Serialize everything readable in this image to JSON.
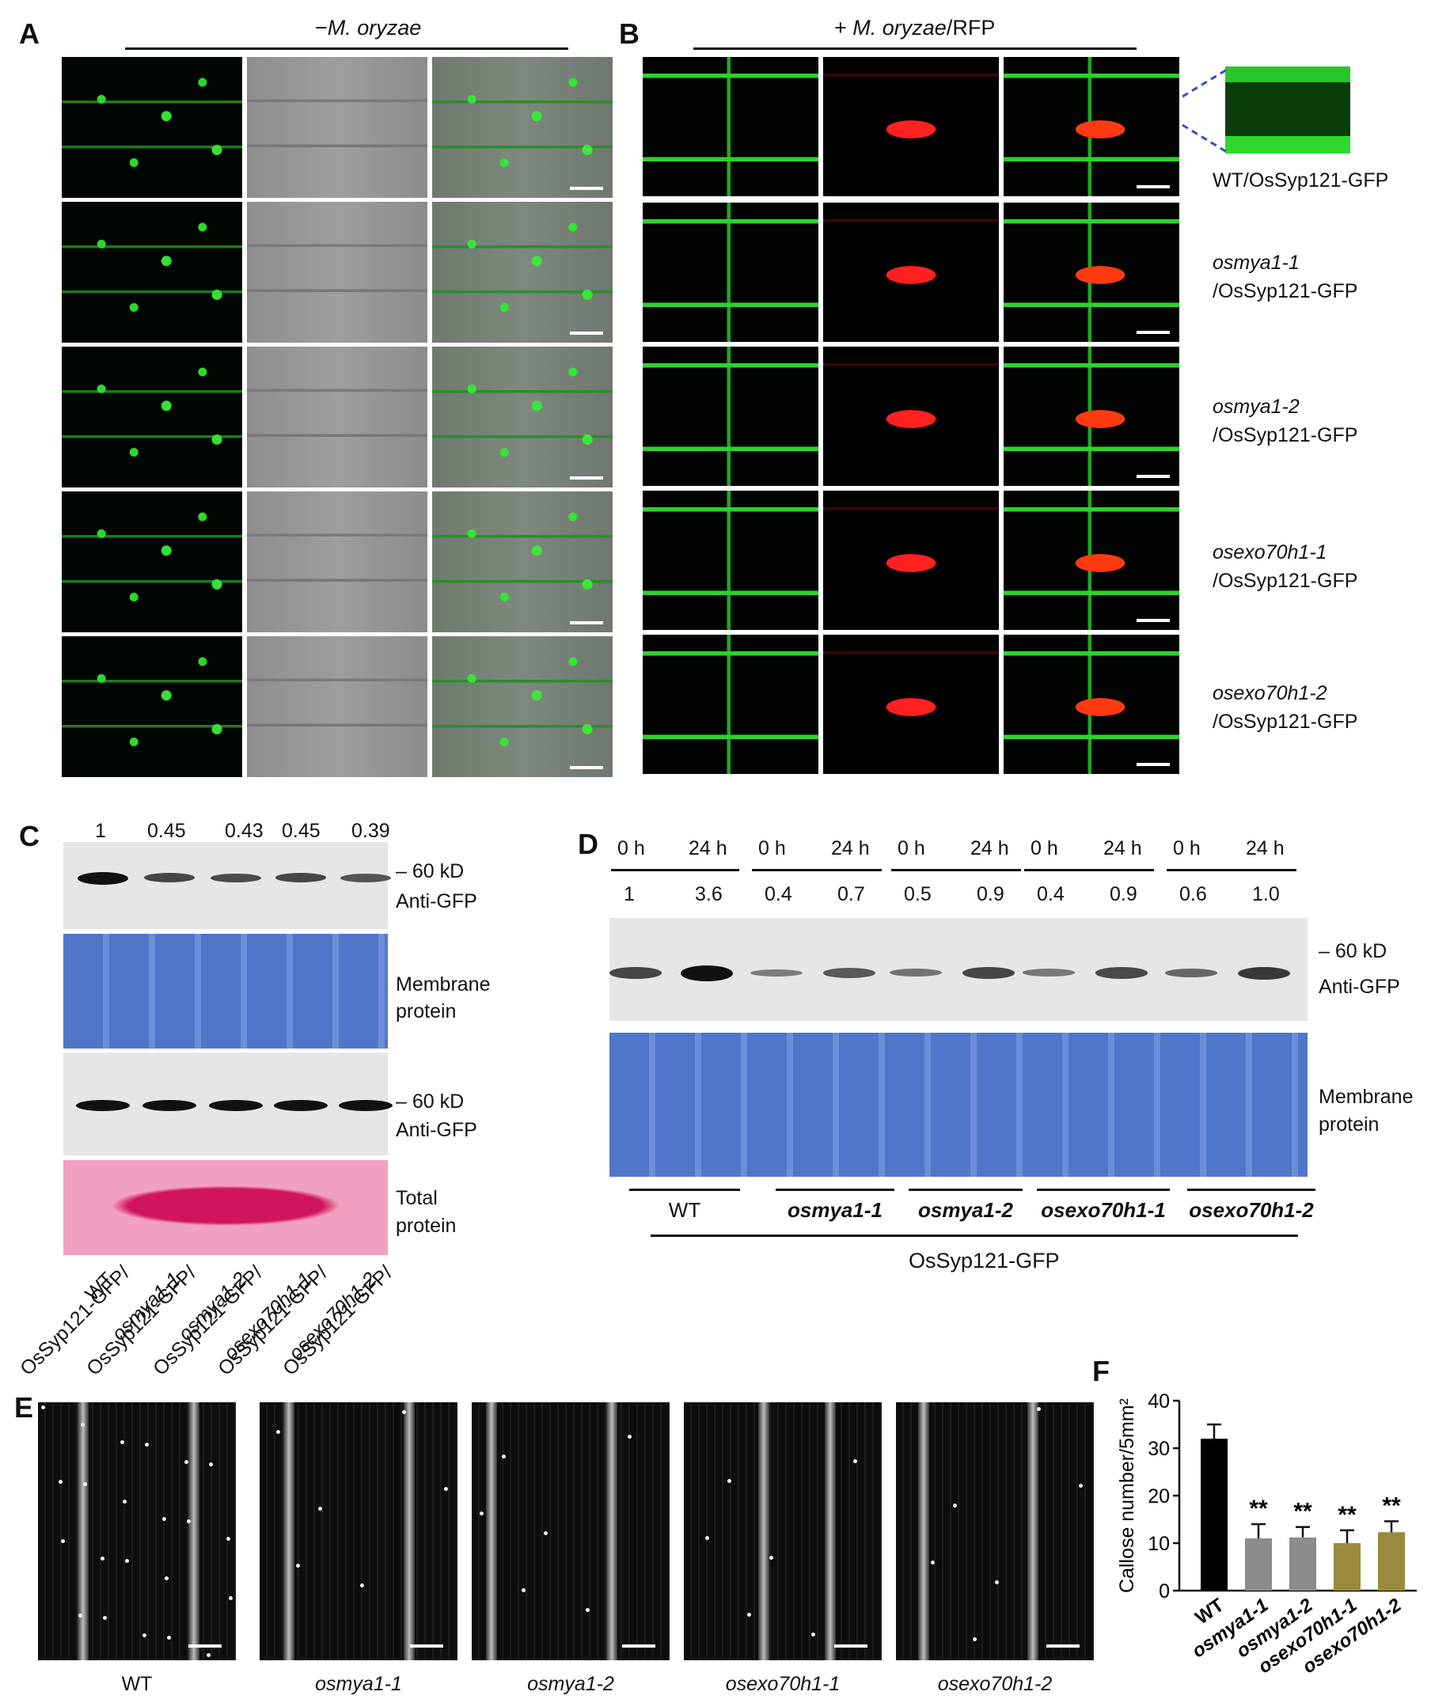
{
  "panels": {
    "A": {
      "label": "A",
      "header_sign": "−",
      "header_ital": "M. oryzae"
    },
    "B": {
      "label": "B",
      "header_pre": "+ ",
      "header_ital": "M. oryzae",
      "header_post": "/RFP",
      "asterisk": "*",
      "rows": [
        {
          "ital": "",
          "plain": "WT/OsSyp121-GFP",
          "line2": ""
        },
        {
          "ital": "osmya1-1",
          "plain": "",
          "line2": "/OsSyp121-GFP"
        },
        {
          "ital": "osmya1-2",
          "plain": "",
          "line2": "/OsSyp121-GFP"
        },
        {
          "ital": "osexo70h1-1",
          "plain": "",
          "line2": "/OsSyp121-GFP"
        },
        {
          "ital": "osexo70h1-2",
          "plain": "",
          "line2": "/OsSyp121-GFP"
        }
      ]
    },
    "C": {
      "label": "C",
      "ratios": [
        "1",
        "0.45",
        "0.43",
        "0.45",
        "0.39"
      ],
      "marker1": "– 60 kD",
      "ab1": "Anti-GFP",
      "stain1_l1": "Membrane",
      "stain1_l2": "protein",
      "marker2": "– 60 kD",
      "ab2": "Anti-GFP",
      "stain2_l1": "Total",
      "stain2_l2": "protein",
      "lanes": [
        {
          "l1": "WT",
          "l2": "OsSyp121-GFP/"
        },
        {
          "l1": "osmya1-1",
          "l2": "OsSyp121-GFP/"
        },
        {
          "l1": "osmya1-2",
          "l2": "OsSyp121-GFP/"
        },
        {
          "l1": "osexo70h1-1",
          "l2": "OsSyp121-GFP/"
        },
        {
          "l1": "osexo70h1-2",
          "l2": "OsSyp121-GFP/"
        }
      ]
    },
    "D": {
      "label": "D",
      "times": [
        "0 h",
        "24 h",
        "0 h",
        "24 h",
        "0 h",
        "24 h",
        "0 h",
        "24 h",
        "0 h",
        "24 h"
      ],
      "ratios": [
        "1",
        "3.6",
        "0.4",
        "0.7",
        "0.5",
        "0.9",
        "0.4",
        "0.9",
        "0.6",
        "1.0"
      ],
      "marker": "– 60 kD",
      "ab": "Anti-GFP",
      "stain_l1": "Membrane",
      "stain_l2": "protein",
      "groups": [
        "WT",
        "osmya1-1",
        "osmya1-2",
        "osexo70h1-1",
        "osexo70h1-2"
      ],
      "construct": "OsSyp121-GFP"
    },
    "E": {
      "label": "E",
      "captions": [
        "WT",
        "osmya1-1",
        "osmya1-2",
        "osexo70h1-1",
        "osexo70h1-2"
      ]
    },
    "F": {
      "label": "F"
    }
  },
  "chart_data": {
    "type": "bar",
    "categories": [
      "WT",
      "osmya1-1",
      "osmya1-2",
      "osexo70h1-1",
      "osexo70h1-2"
    ],
    "values": [
      32,
      11,
      11.2,
      10,
      12.3
    ],
    "errors": [
      3,
      3,
      2.2,
      2.7,
      2.3
    ],
    "significance": [
      "",
      "**",
      "**",
      "**",
      "**"
    ],
    "colors": [
      "#000000",
      "#8c8c8c",
      "#8c8c8c",
      "#9a8a3c",
      "#9a8a3c"
    ],
    "ylabel": "Callose number/5mm²",
    "yticks": [
      "0",
      "10",
      "20",
      "30",
      "40"
    ],
    "ylim": [
      0,
      40
    ]
  }
}
